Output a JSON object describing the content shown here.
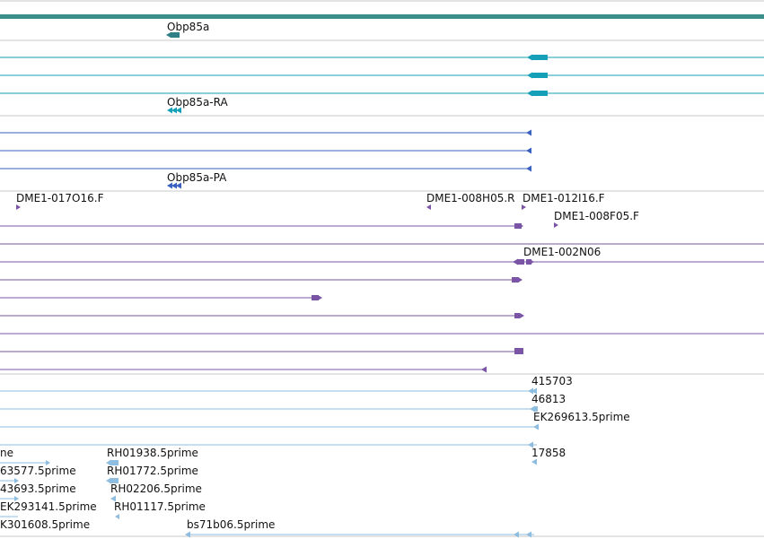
{
  "colors": {
    "ruler": "#3a8f8a",
    "gene": "#2e7f86",
    "transcript_rna": "#16a0b8",
    "transcript_cds": "#3a60c0",
    "est": "#7a55a6",
    "evidence": "#8ebde0",
    "separator": "#c9c9c9"
  },
  "labels": {
    "gene": "Obp85a",
    "rna": "Obp85a-RA",
    "pa": "Obp85a-PA",
    "est_1": "DME1-017O16.F",
    "est_2": "DME1-008H05.R",
    "est_3": "DME1-012I16.F",
    "est_4": "DME1-008F05.F",
    "est_5": "DME1-002N06",
    "ev_1": "415703",
    "ev_2": "46813",
    "ev_3": "EK269613.5prime",
    "ev_4": "17858",
    "ev_left_1": "ne",
    "ev_left_2": "63577.5prime",
    "ev_left_3": "43693.5prime",
    "ev_left_4": "EK293141.5prime",
    "ev_left_5": "K301608.5prime",
    "rh_1": "RH01938.5prime",
    "rh_2": "RH01772.5prime",
    "rh_3": "RH02206.5prime",
    "rh_4": "RH01117.5prime",
    "bs": "bs71b06.5prime"
  }
}
